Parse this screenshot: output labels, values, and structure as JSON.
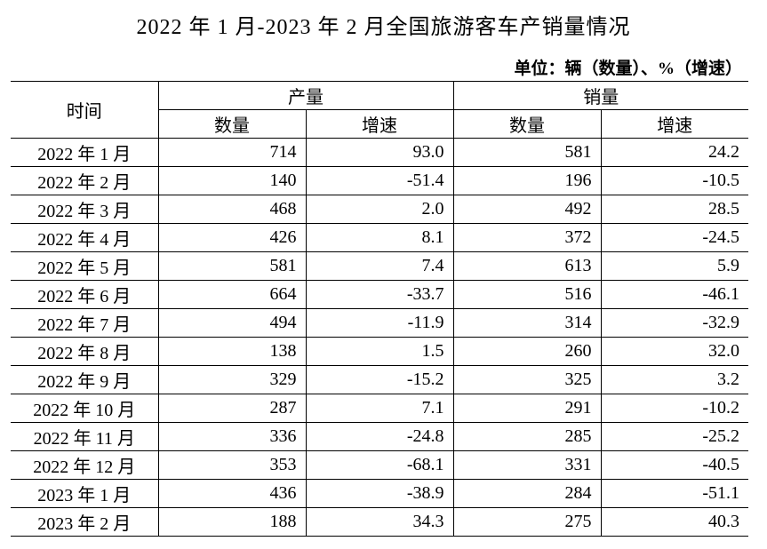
{
  "title": "2022 年 1 月-2023 年 2 月全国旅游客车产销量情况",
  "unit": "单位：辆（数量）、%（增速）",
  "table": {
    "header": {
      "time": "时间",
      "production": "产量",
      "sales": "销量",
      "columns": [
        "数量",
        "增速",
        "数量",
        "增速"
      ]
    },
    "rows": [
      [
        "2022 年 1 月",
        "714",
        "93.0",
        "581",
        "24.2"
      ],
      [
        "2022 年 2 月",
        "140",
        "-51.4",
        "196",
        "-10.5"
      ],
      [
        "2022 年 3 月",
        "468",
        "2.0",
        "492",
        "28.5"
      ],
      [
        "2022 年 4 月",
        "426",
        "8.1",
        "372",
        "-24.5"
      ],
      [
        "2022 年 5 月",
        "581",
        "7.4",
        "613",
        "5.9"
      ],
      [
        "2022 年 6 月",
        "664",
        "-33.7",
        "516",
        "-46.1"
      ],
      [
        "2022 年 7 月",
        "494",
        "-11.9",
        "314",
        "-32.9"
      ],
      [
        "2022 年 8 月",
        "138",
        "1.5",
        "260",
        "32.0"
      ],
      [
        "2022 年 9 月",
        "329",
        "-15.2",
        "325",
        "3.2"
      ],
      [
        "2022 年 10 月",
        "287",
        "7.1",
        "291",
        "-10.2"
      ],
      [
        "2022 年 11 月",
        "336",
        "-24.8",
        "285",
        "-25.2"
      ],
      [
        "2022 年 12 月",
        "353",
        "-68.1",
        "331",
        "-40.5"
      ],
      [
        "2023 年 1 月",
        "436",
        "-38.9",
        "284",
        "-51.1"
      ],
      [
        "2023 年 2 月",
        "188",
        "34.3",
        "275",
        "40.3"
      ]
    ]
  }
}
